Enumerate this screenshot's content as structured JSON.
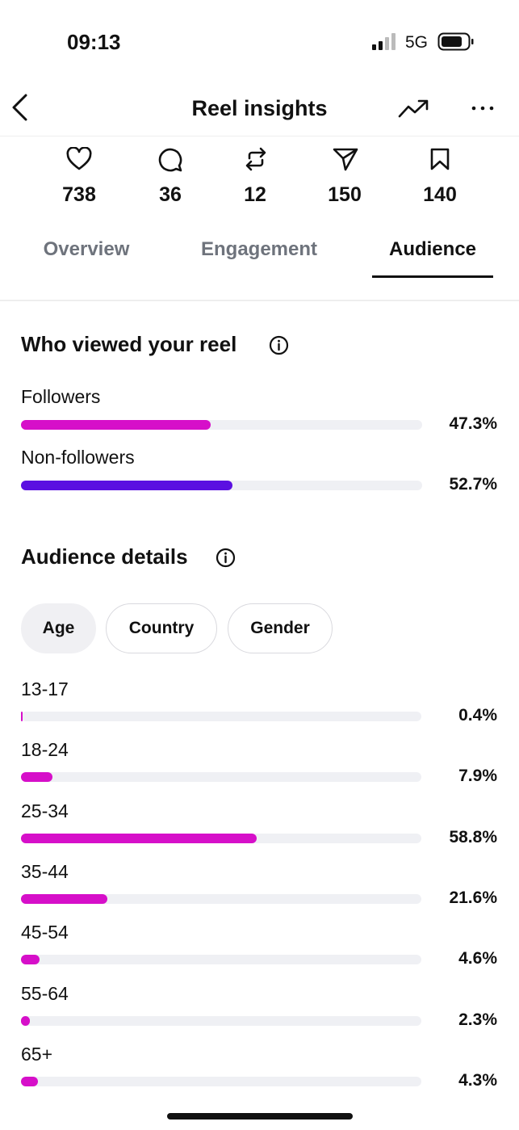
{
  "status_bar": {
    "time": "09:13",
    "network": "5G"
  },
  "header": {
    "title": "Reel insights"
  },
  "stats": [
    738,
    36,
    12,
    150,
    140
  ],
  "tabs": {
    "items": [
      "Overview",
      "Engagement",
      "Audience"
    ],
    "active": 2
  },
  "viewers": {
    "title": "Who viewed your reel",
    "xlim": [
      0,
      100
    ],
    "rows": [
      {
        "label": "Followers",
        "value": 47.3,
        "value_label": "47.3%",
        "color": "#d60fc9"
      },
      {
        "label": "Non-followers",
        "value": 52.7,
        "value_label": "52.7%",
        "color": "#5b10e1"
      }
    ]
  },
  "audience_details": {
    "title": "Audience details",
    "filters": [
      "Age",
      "Country",
      "Gender"
    ],
    "selected_filter": 0,
    "xlim": [
      0,
      100
    ],
    "color": "#d60fc9",
    "rows": [
      {
        "label": "13-17",
        "value": 0.4,
        "value_label": "0.4%"
      },
      {
        "label": "18-24",
        "value": 7.9,
        "value_label": "7.9%"
      },
      {
        "label": "25-34",
        "value": 58.8,
        "value_label": "58.8%"
      },
      {
        "label": "35-44",
        "value": 21.6,
        "value_label": "21.6%"
      },
      {
        "label": "45-54",
        "value": 4.6,
        "value_label": "4.6%"
      },
      {
        "label": "55-64",
        "value": 2.3,
        "value_label": "2.3%"
      },
      {
        "label": "65+",
        "value": 4.3,
        "value_label": "4.3%"
      }
    ]
  }
}
